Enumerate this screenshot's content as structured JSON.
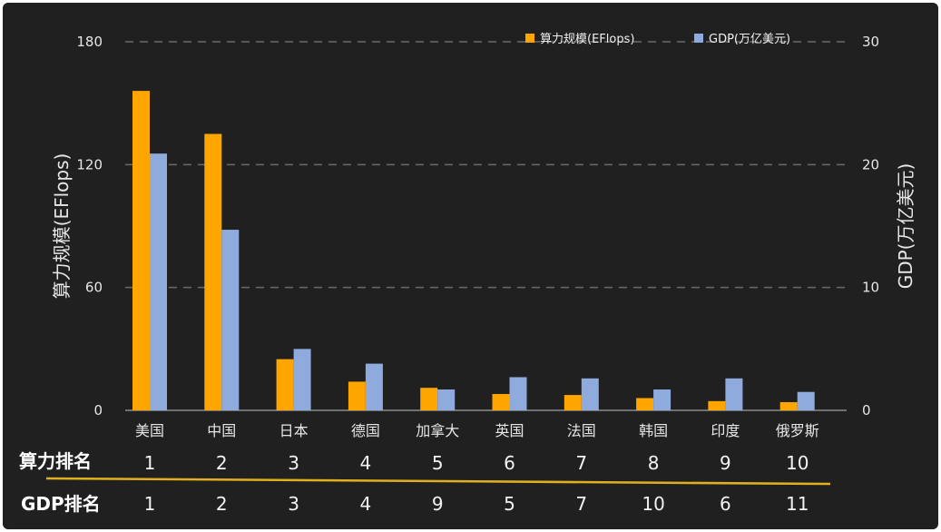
{
  "chart_data": {
    "type": "bar",
    "categories": [
      "美国",
      "中国",
      "日本",
      "德国",
      "加拿大",
      "英国",
      "法国",
      "韩国",
      "印度",
      "俄罗斯"
    ],
    "series": [
      {
        "name": "算力规模(EFlops)",
        "axis": "left",
        "color": "#FFA500",
        "values": [
          156,
          135,
          25,
          14,
          11,
          8,
          7.5,
          6,
          4.5,
          4
        ]
      },
      {
        "name": "GDP(万亿美元)",
        "axis": "right",
        "color": "#8FAADC",
        "values": [
          20.9,
          14.7,
          5,
          3.8,
          1.7,
          2.7,
          2.6,
          1.7,
          2.6,
          1.5
        ]
      }
    ],
    "ylabel": "算力规模(EFlops)",
    "y2label": "GDP(万亿美元)",
    "ylim": [
      0,
      180
    ],
    "y2lim": [
      0,
      30
    ],
    "yticks": [
      "0",
      "60",
      "120",
      "180"
    ],
    "y2ticks": [
      "0",
      "10",
      "20",
      "30"
    ],
    "grid": true,
    "legend_position": "top-right"
  },
  "rankings": {
    "compute_label": "算力排名",
    "compute_values": [
      "1",
      "2",
      "3",
      "4",
      "5",
      "6",
      "7",
      "8",
      "9",
      "10"
    ],
    "gdp_label": "GDP排名",
    "gdp_values": [
      "1",
      "2",
      "3",
      "4",
      "9",
      "5",
      "7",
      "10",
      "6",
      "11"
    ],
    "divider_color": "#E0B020"
  }
}
